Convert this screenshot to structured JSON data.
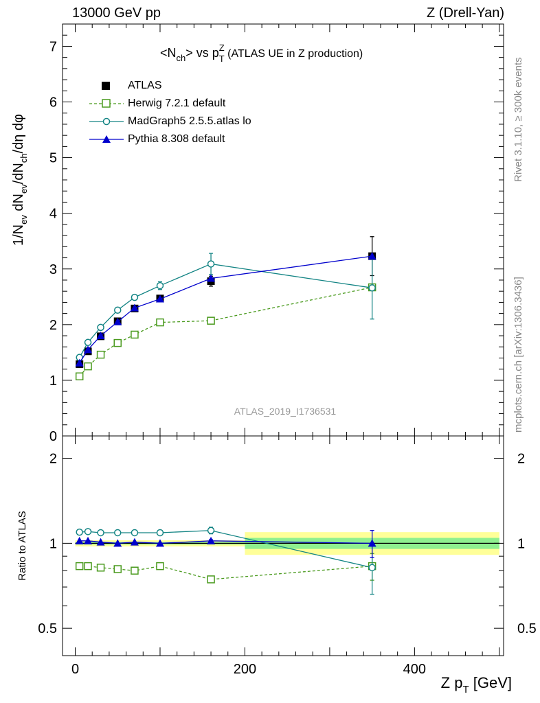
{
  "header": {
    "left_label": "13000 GeV pp",
    "right_label": "Z (Drell-Yan)"
  },
  "side_texts": {
    "top": "Rivet 3.1.10, ≥ 300k events",
    "bottom": "mcplots.cern.ch [arXiv:1306.3436]"
  },
  "watermark": "ATLAS_2019_I1736531",
  "title": {
    "prefix": "<N",
    "sub_ch": "ch",
    "mid": "> vs p",
    "sup_Z": "Z",
    "sub_T": "T",
    "suffix": " (ATLAS UE in Z production)"
  },
  "colors": {
    "atlas": "#000000",
    "herwig": "#4a9a1e",
    "madgraph": "#138484",
    "pythia": "#0000cc",
    "band_inner": "#8ff08f",
    "band_outer": "#ffff99"
  },
  "legend": [
    {
      "key": "atlas",
      "label": "ATLAS",
      "marker": "filled-square",
      "line": "none"
    },
    {
      "key": "herwig",
      "label": "Herwig 7.2.1 default",
      "marker": "open-square",
      "line": "dashed"
    },
    {
      "key": "madgraph",
      "label": "MadGraph5 2.5.5.atlas lo",
      "marker": "open-circle",
      "line": "solid"
    },
    {
      "key": "pythia",
      "label": "Pythia 8.308 default",
      "marker": "filled-triangle",
      "line": "solid"
    }
  ],
  "chart_data": [
    {
      "type": "line",
      "panel": "main",
      "ylabel": "1/N_ev dN_ev/dN_ch/dη dφ",
      "xlim": [
        -15,
        505
      ],
      "ylim": [
        0,
        7.4
      ],
      "yticks": [
        0,
        1,
        2,
        3,
        4,
        5,
        6,
        7
      ],
      "series": [
        {
          "name": "ATLAS",
          "key": "atlas",
          "x": [
            5,
            15,
            30,
            50,
            70,
            100,
            160,
            350
          ],
          "y": [
            1.29,
            1.52,
            1.79,
            2.06,
            2.29,
            2.47,
            2.78,
            3.23
          ],
          "yerr": [
            0.02,
            0.02,
            0.03,
            0.04,
            0.05,
            0.05,
            0.09,
            0.35
          ]
        },
        {
          "name": "Herwig 7.2.1 default",
          "key": "herwig",
          "x": [
            5,
            15,
            30,
            50,
            70,
            100,
            160,
            350
          ],
          "y": [
            1.07,
            1.25,
            1.46,
            1.67,
            1.82,
            2.04,
            2.07,
            2.67
          ],
          "yerr": [
            0.0,
            0.0,
            0.0,
            0.0,
            0.0,
            0.0,
            0.03,
            0.0
          ]
        },
        {
          "name": "MadGraph5 2.5.5.atlas lo",
          "key": "madgraph",
          "x": [
            5,
            15,
            30,
            50,
            70,
            100,
            160,
            350
          ],
          "y": [
            1.41,
            1.68,
            1.95,
            2.26,
            2.49,
            2.7,
            3.09,
            2.66
          ],
          "yerr": [
            0.0,
            0.0,
            0.0,
            0.02,
            0.03,
            0.07,
            0.19,
            0.56
          ]
        },
        {
          "name": "Pythia 8.308 default",
          "key": "pythia",
          "x": [
            5,
            15,
            30,
            50,
            70,
            100,
            160,
            350
          ],
          "y": [
            1.31,
            1.55,
            1.8,
            2.05,
            2.3,
            2.46,
            2.83,
            3.23
          ],
          "yerr": [
            0.0,
            0.0,
            0.0,
            0.0,
            0.0,
            0.0,
            0.0,
            0.0
          ]
        }
      ]
    },
    {
      "type": "line",
      "panel": "ratio",
      "ylabel": "Ratio to ATLAS",
      "xlabel": "Z p_T [GeV]",
      "xlim": [
        -15,
        505
      ],
      "ylim": [
        0.4,
        2.4
      ],
      "ylog": true,
      "yticks": [
        0.5,
        1,
        2
      ],
      "ytick_labels": [
        "0.5",
        "1",
        "2"
      ],
      "xticks": [
        0,
        200,
        400
      ],
      "xtick_labels": [
        "0",
        "200",
        "400"
      ],
      "bands": [
        {
          "x0": 0,
          "x1": 200,
          "inner": [
            0.99,
            1.01
          ],
          "outer": [
            0.975,
            1.025
          ]
        },
        {
          "x0": 200,
          "x1": 500,
          "inner": [
            0.955,
            1.045
          ],
          "outer": [
            0.91,
            1.095
          ]
        }
      ],
      "series": [
        {
          "name": "Herwig 7.2.1 default",
          "key": "herwig",
          "x": [
            5,
            15,
            30,
            50,
            70,
            100,
            160,
            350
          ],
          "y": [
            0.83,
            0.83,
            0.82,
            0.81,
            0.8,
            0.83,
            0.745,
            0.83
          ],
          "yerr": [
            0.0,
            0.0,
            0.0,
            0.0,
            0.0,
            0.0,
            0.015,
            0.09
          ]
        },
        {
          "name": "MadGraph5 2.5.5.atlas lo",
          "key": "madgraph",
          "x": [
            5,
            15,
            30,
            50,
            70,
            100,
            160,
            350
          ],
          "y": [
            1.095,
            1.1,
            1.09,
            1.09,
            1.09,
            1.09,
            1.11,
            0.82
          ],
          "yerr": [
            0.0,
            0.0,
            0.0,
            0.0,
            0.0,
            0.0,
            0.03,
            0.16
          ]
        },
        {
          "name": "Pythia 8.308 default",
          "key": "pythia",
          "x": [
            5,
            15,
            30,
            50,
            70,
            100,
            160,
            350
          ],
          "y": [
            1.02,
            1.02,
            1.01,
            1.0,
            1.01,
            1.0,
            1.02,
            1.0
          ],
          "yerr": [
            0.0,
            0.0,
            0.0,
            0.0,
            0.0,
            0.0,
            0.01,
            0.11
          ]
        }
      ]
    }
  ]
}
